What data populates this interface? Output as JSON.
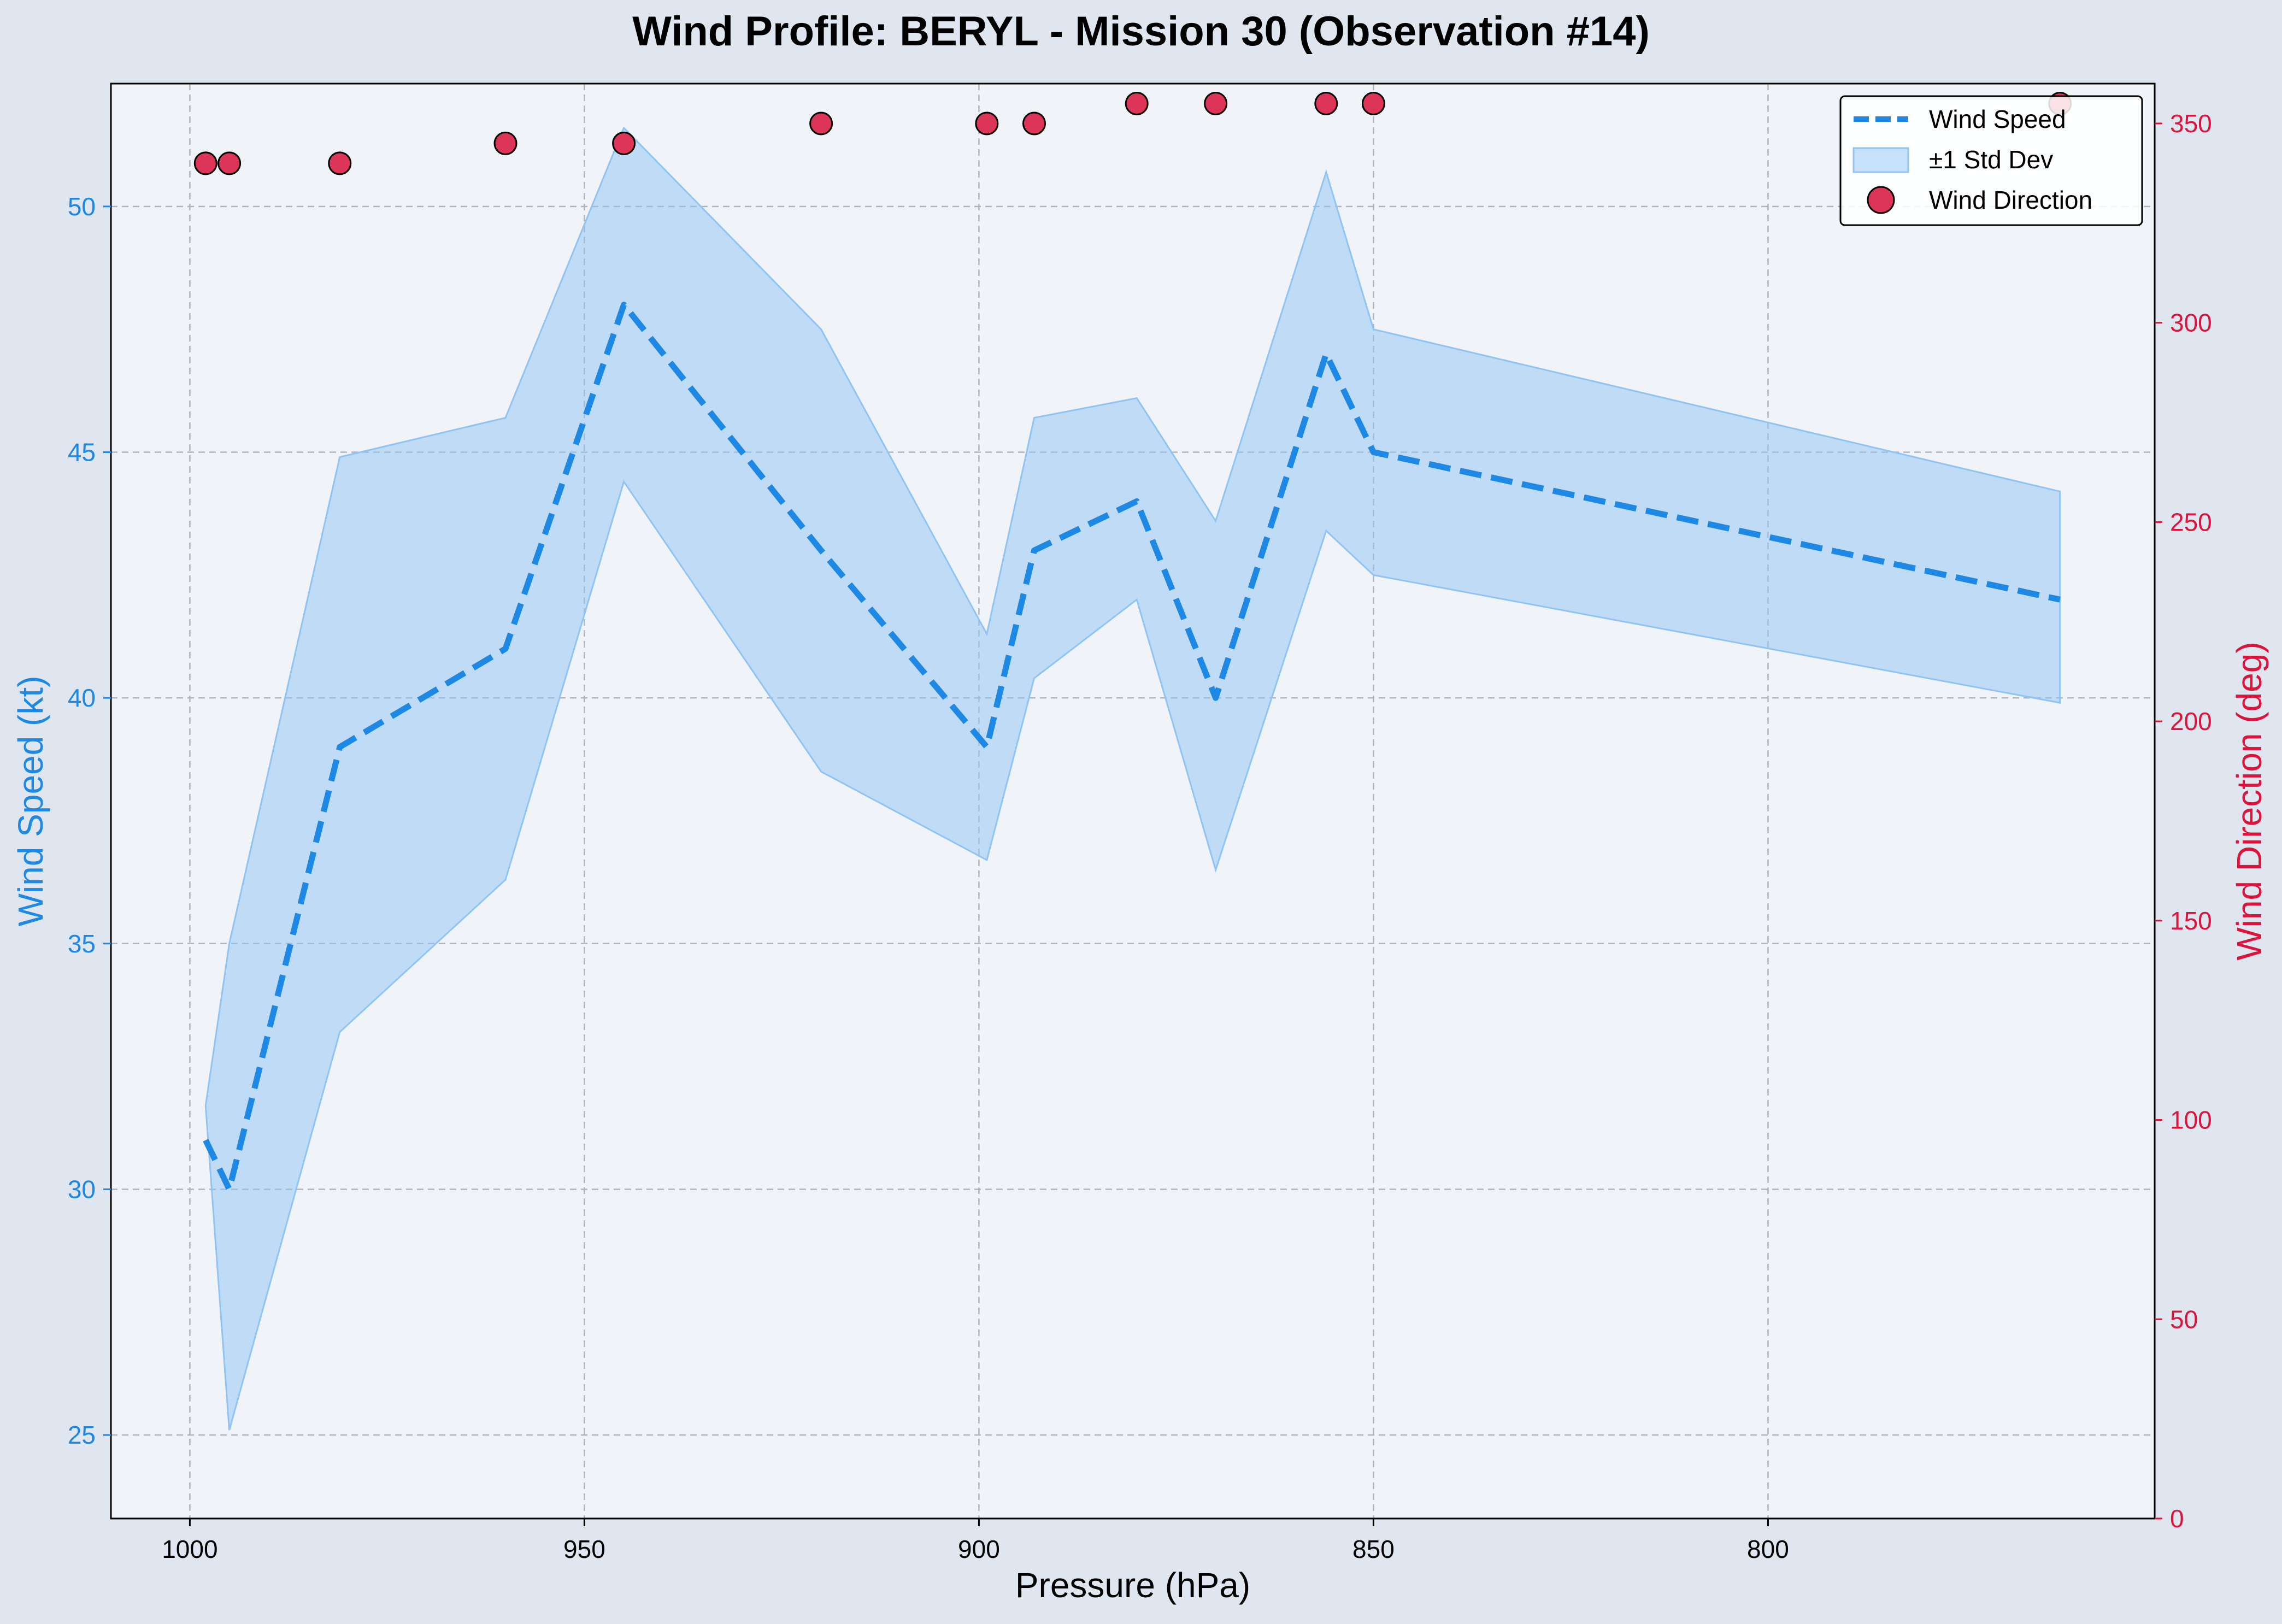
{
  "chart_data": {
    "type": "line",
    "title": "Wind Profile: BERYL - Mission 30 (Observation #14)",
    "xlabel": "Pressure (hPa)",
    "ylabel_left": "Wind Speed (kt)",
    "ylabel_right": "Wind Direction (deg)",
    "x_axis_inverted": true,
    "xlim": [
      1010,
      751
    ],
    "ylim_left": [
      23.3,
      52.5
    ],
    "ylim_right": [
      0,
      360
    ],
    "x_ticks": [
      1000,
      950,
      900,
      850,
      800
    ],
    "y_left_ticks": [
      25,
      30,
      35,
      40,
      45,
      50
    ],
    "y_right_ticks": [
      0,
      50,
      100,
      150,
      200,
      250,
      300,
      350
    ],
    "grid": true,
    "legend_position": "top-right",
    "pressure": [
      998,
      995,
      981,
      960,
      945,
      920,
      899,
      893,
      880,
      870,
      856,
      850,
      763
    ],
    "series": [
      {
        "name": "Wind Speed",
        "axis": "left",
        "style": "dashed-line",
        "color": "#1e88e5",
        "values": [
          31.0,
          30.0,
          39.0,
          41.0,
          48.0,
          43.0,
          39.0,
          43.0,
          44.0,
          40.0,
          47.0,
          45.0,
          42.0
        ]
      },
      {
        "name": "±1 Std Dev",
        "axis": "left",
        "style": "band",
        "color": "#90c4f4",
        "lower": [
          31.7,
          25.1,
          33.2,
          36.3,
          44.4,
          38.5,
          36.7,
          40.4,
          42.0,
          36.5,
          43.4,
          42.5,
          39.9
        ],
        "upper": [
          31.7,
          35.0,
          44.9,
          45.7,
          51.6,
          47.5,
          41.3,
          45.7,
          46.1,
          43.6,
          50.7,
          47.5,
          44.2
        ]
      },
      {
        "name": "Wind Direction",
        "axis": "right",
        "style": "scatter",
        "color": "#dc3558",
        "values": [
          340,
          340,
          340,
          345,
          345,
          350,
          350,
          350,
          355,
          355,
          355,
          355,
          355
        ]
      }
    ]
  },
  "colors": {
    "speed": "#1e88e5",
    "band": "#90c4f4",
    "direction": "#dc3558",
    "direction_axis": "#dc143c",
    "plot_bg": "#f0f3f8",
    "figure_bg": "#e0e6ef"
  }
}
